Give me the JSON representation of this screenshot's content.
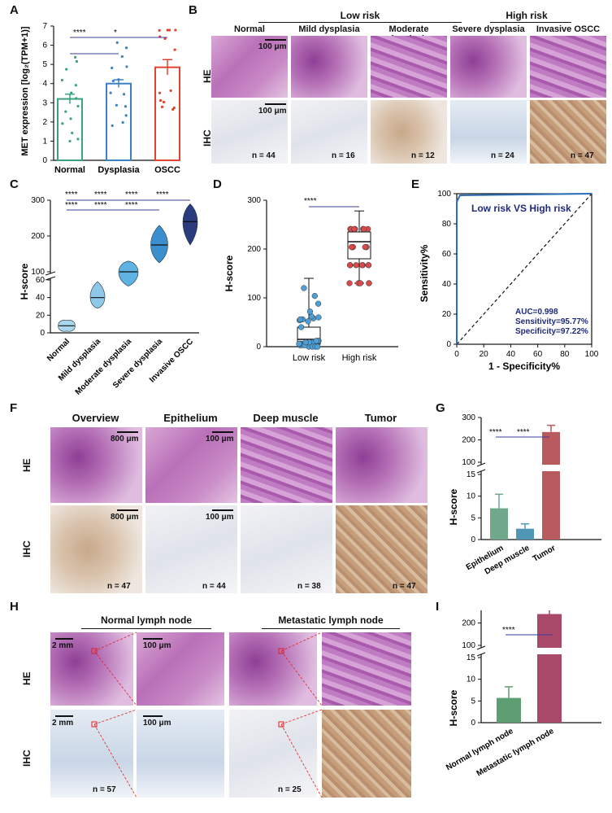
{
  "panels": {
    "A": "A",
    "B": "B",
    "C": "C",
    "D": "D",
    "E": "E",
    "F": "F",
    "G": "G",
    "H": "H",
    "I": "I"
  },
  "panelA": {
    "ylabel": "MET expression [log₂(TPM+1)]",
    "categories": [
      "Normal",
      "Dysplasia",
      "OSCC"
    ],
    "values": [
      3.2,
      4.0,
      4.85
    ],
    "errors": [
      0.25,
      0.2,
      0.4
    ],
    "colors": [
      "#3aa37b",
      "#3b82c4",
      "#e0432f"
    ],
    "yticks": [
      "0",
      "1",
      "2",
      "3",
      "4",
      "5",
      "6",
      "7"
    ],
    "sig": [
      "****",
      "*"
    ]
  },
  "panelB": {
    "group_low": "Low risk",
    "group_high": "High risk",
    "columns": [
      "Normal",
      "Mild dysplasia",
      "Moderate dysplasia",
      "Severe dysplasia",
      "Invasive OSCC"
    ],
    "rows": [
      "HE",
      "IHC"
    ],
    "scale": "100 μm",
    "n": [
      "n = 44",
      "n = 16",
      "n = 12",
      "n = 24",
      "n = 47"
    ]
  },
  "panelC": {
    "ylabel": "H-score",
    "categories": [
      "Normal",
      "Mild dysplasia",
      "Moderate dysplasia",
      "Severe dysplasia",
      "Invasive OSCC"
    ],
    "medians": [
      8,
      40,
      100,
      175,
      240
    ],
    "yticks_low": [
      "0",
      "20",
      "40",
      "60"
    ],
    "yticks_high": [
      "100",
      "200",
      "300"
    ],
    "sig": "****"
  },
  "panelD": {
    "ylabel": "H-score",
    "categories": [
      "Low risk",
      "High risk"
    ],
    "yticks": [
      "0",
      "100",
      "200",
      "300"
    ],
    "sig": "****"
  },
  "panelE": {
    "title": "Low risk  VS  High risk",
    "ylabel": "Sensitivity%",
    "xlabel": "1 - Specificity%",
    "ticks": [
      "0",
      "20",
      "40",
      "60",
      "80",
      "100"
    ],
    "auc": "AUC=0.998",
    "sensitivity": "Sensitivity=95.77%",
    "specificity": "Specificity=97.22%"
  },
  "panelF": {
    "columns": [
      "Overview",
      "Epithelium",
      "Deep muscle",
      "Tumor"
    ],
    "rows": [
      "HE",
      "IHC"
    ],
    "scale1": "800 μm",
    "scale2": "100 μm",
    "n": [
      "n = 47",
      "n = 44",
      "n = 38",
      "n = 47"
    ]
  },
  "panelG": {
    "ylabel": "H-score",
    "categories": [
      "Epithelium",
      "Deep muscle",
      "Tumor"
    ],
    "values": [
      7.2,
      2.5,
      235
    ],
    "colors": [
      "#6fa88a",
      "#4f97b5",
      "#b85b5e"
    ],
    "yticks_low": [
      "0",
      "5",
      "10",
      "15"
    ],
    "yticks_high": [
      "100",
      "200",
      "300"
    ],
    "sig": "****"
  },
  "panelH": {
    "group1": "Normal lymph node",
    "group2": "Metastatic lymph node",
    "rows": [
      "HE",
      "IHC"
    ],
    "scale1": "2 mm",
    "scale2": "100 μm",
    "n": [
      "n = 57",
      "n = 25"
    ]
  },
  "panelI": {
    "ylabel": "H-score",
    "categories": [
      "Normal lymph node",
      "Metastatic lymph node"
    ],
    "values": [
      5.7,
      240
    ],
    "colors": [
      "#5e9e73",
      "#a8496a"
    ],
    "yticks_low": [
      "0",
      "5",
      "10",
      "15"
    ],
    "yticks_high": [
      "100",
      "200",
      "300"
    ],
    "sig": "****"
  }
}
